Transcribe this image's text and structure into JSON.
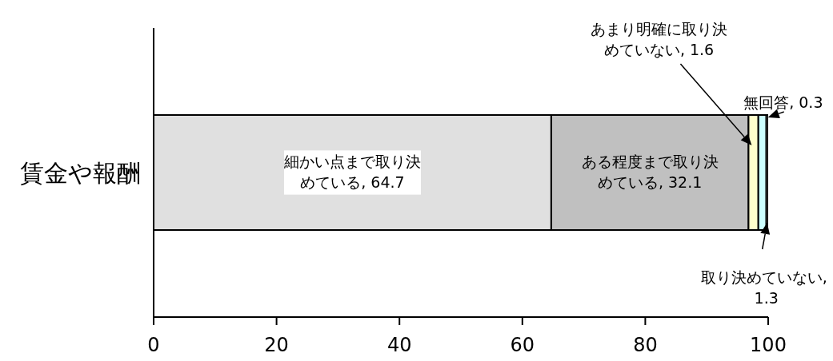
{
  "chart_data": {
    "type": "bar",
    "orientation": "horizontal",
    "stacked": true,
    "categories": [
      "賃金や報酬"
    ],
    "series": [
      {
        "color": "#e0e0e0",
        "values": [
          64.7
        ],
        "value_labels": [
          "細かい点まで取り決めている, 64.7"
        ]
      },
      {
        "color": "#c0c0c0",
        "values": [
          32.1
        ],
        "value_labels": [
          "ある程度まで取り決めている, 32.1"
        ]
      },
      {
        "color": "#ffffcc",
        "values": [
          1.6
        ],
        "value_labels": [
          "あまり明確に取り決めていない, 1.6"
        ]
      },
      {
        "color": "#ccffff",
        "values": [
          1.3
        ],
        "value_labels": [
          "取り決めていない, 1.3"
        ]
      },
      {
        "color": "#ffffff",
        "values": [
          0.3
        ],
        "value_labels": [
          "無回答, 0.3"
        ]
      }
    ],
    "xlim": [
      0,
      100
    ],
    "xticks": [
      0,
      20,
      40,
      60,
      80,
      100
    ]
  }
}
